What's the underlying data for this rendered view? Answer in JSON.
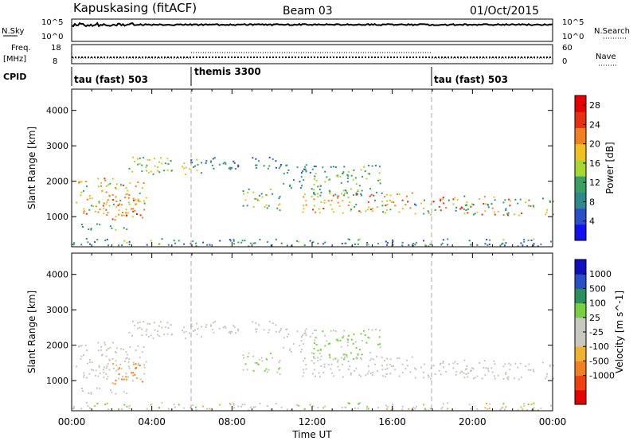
{
  "header": {
    "station": "Kapuskasing (fitACF)",
    "beam": "Beam 03",
    "date": "01/Oct/2015"
  },
  "noise_panel": {
    "left_label": "N.Sky",
    "right_label": "N.Search",
    "left_ticks": [
      "10^5",
      "10^0"
    ],
    "right_ticks": [
      "10^5",
      "10^0"
    ]
  },
  "freq_panel": {
    "left_label_top": "Freq.",
    "left_label_bottom": "[MHz]",
    "right_label": "Nave",
    "left_ticks": [
      "18",
      "8"
    ],
    "right_ticks": [
      "60",
      "0"
    ]
  },
  "cpid_panel": {
    "label": "CPID",
    "segments": [
      "tau (fast) 503",
      "themis 3300",
      "tau (fast) 503"
    ]
  },
  "x_axis": {
    "label": "Time UT",
    "ticks": [
      "00:00",
      "04:00",
      "08:00",
      "12:00",
      "16:00",
      "20:00",
      "00:00"
    ]
  },
  "colors": {
    "power": [
      "#1010f0",
      "#2a50c8",
      "#2e8a8a",
      "#3aa060",
      "#a8d830",
      "#f0c020",
      "#f08020",
      "#e83010",
      "#e80000"
    ],
    "velocity": [
      "#e80000",
      "#f04010",
      "#f08020",
      "#f0b030",
      "#c8c8c0",
      "#c8c8c0",
      "#78d040",
      "#2a9060",
      "#2a50c8",
      "#1010c0"
    ]
  },
  "chart_data": [
    {
      "type": "heatmap",
      "title": "",
      "xlabel": "Time UT",
      "ylabel": "Slant Range [km]",
      "xlim": [
        0,
        24
      ],
      "ylim": [
        150,
        4600
      ],
      "y_ticks": [
        1000,
        2000,
        3000,
        4000
      ],
      "colorbar": {
        "label": "Power [dB]",
        "ticks": [
          "4",
          "8",
          "12",
          "16",
          "20",
          "24",
          "28"
        ],
        "range": [
          0,
          30
        ]
      },
      "mode": "power",
      "scatter_bands": [
        {
          "t0": 0.2,
          "t1": 3.7,
          "r0": 1000,
          "r1": 2100,
          "v0": 12,
          "v1": 24
        },
        {
          "t0": 2.0,
          "t1": 3.6,
          "r0": 900,
          "r1": 1500,
          "v0": 18,
          "v1": 28
        },
        {
          "t0": 0.4,
          "t1": 2.8,
          "r0": 650,
          "r1": 850,
          "v0": 8,
          "v1": 16
        },
        {
          "t0": 2.8,
          "t1": 6.5,
          "r0": 2200,
          "r1": 2700,
          "v0": 10,
          "v1": 20
        },
        {
          "t0": 5.8,
          "t1": 10.5,
          "r0": 2350,
          "r1": 2700,
          "v0": 5,
          "v1": 12
        },
        {
          "t0": 10.3,
          "t1": 12.2,
          "r0": 1800,
          "r1": 2500,
          "v0": 5,
          "v1": 12
        },
        {
          "t0": 11.5,
          "t1": 17.0,
          "r0": 1100,
          "r1": 1700,
          "v0": 12,
          "v1": 26
        },
        {
          "t0": 17.0,
          "t1": 24.0,
          "r0": 1050,
          "r1": 1600,
          "v0": 6,
          "v1": 26
        },
        {
          "t0": 12.0,
          "t1": 15.5,
          "r0": 1600,
          "r1": 2500,
          "v0": 8,
          "v1": 16
        },
        {
          "t0": 8.5,
          "t1": 10.5,
          "r0": 1200,
          "r1": 1800,
          "v0": 8,
          "v1": 20
        },
        {
          "t0": 0.0,
          "t1": 24.0,
          "r0": 180,
          "r1": 400,
          "v0": 4,
          "v1": 14
        }
      ]
    },
    {
      "type": "heatmap",
      "title": "",
      "xlabel": "Time UT",
      "ylabel": "Slant Range [km]",
      "xlim": [
        0,
        24
      ],
      "ylim": [
        150,
        4600
      ],
      "y_ticks": [
        1000,
        2000,
        3000,
        4000
      ],
      "colorbar": {
        "label": "Velocity [m s^-1]",
        "ticks": [
          "1000",
          "500",
          "100",
          "25",
          "-25",
          "-100",
          "-500",
          "-1000"
        ],
        "range": [
          -1000,
          1000
        ]
      },
      "mode": "velocity",
      "scatter_bands": [
        {
          "t0": 0.2,
          "t1": 3.7,
          "r0": 1000,
          "r1": 2100,
          "v0": 0,
          "v1": 0
        },
        {
          "t0": 2.0,
          "t1": 3.6,
          "r0": 900,
          "r1": 1500,
          "v0": -600,
          "v1": -200
        },
        {
          "t0": 0.4,
          "t1": 2.8,
          "r0": 650,
          "r1": 850,
          "v0": 0,
          "v1": 0
        },
        {
          "t0": 2.8,
          "t1": 6.5,
          "r0": 2200,
          "r1": 2700,
          "v0": 0,
          "v1": 0
        },
        {
          "t0": 5.8,
          "t1": 10.5,
          "r0": 2350,
          "r1": 2700,
          "v0": 0,
          "v1": 0
        },
        {
          "t0": 10.3,
          "t1": 12.2,
          "r0": 1800,
          "r1": 2500,
          "v0": 0,
          "v1": 0
        },
        {
          "t0": 11.5,
          "t1": 17.0,
          "r0": 1100,
          "r1": 1700,
          "v0": 0,
          "v1": 0
        },
        {
          "t0": 17.0,
          "t1": 24.0,
          "r0": 1050,
          "r1": 1600,
          "v0": 0,
          "v1": 0
        },
        {
          "t0": 12.0,
          "t1": 15.5,
          "r0": 1600,
          "r1": 2500,
          "v0": 50,
          "v1": 400
        },
        {
          "t0": 8.5,
          "t1": 10.5,
          "r0": 1200,
          "r1": 1800,
          "v0": 50,
          "v1": 300
        },
        {
          "t0": 0.0,
          "t1": 24.0,
          "r0": 180,
          "r1": 400,
          "v0": -300,
          "v1": 300
        }
      ]
    }
  ]
}
